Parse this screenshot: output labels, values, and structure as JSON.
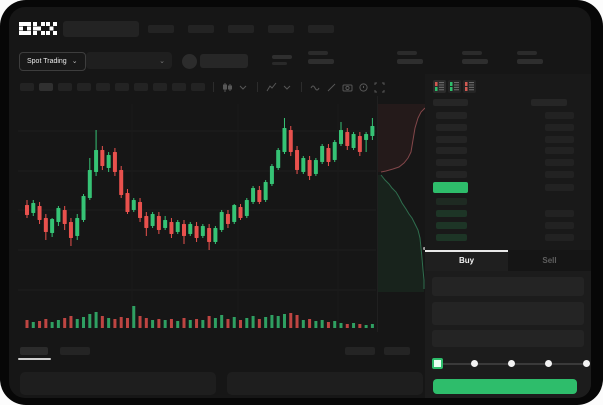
{
  "brand": {
    "logo_text": "OKX"
  },
  "header": {
    "nav_placeholder_count": 5
  },
  "subheader": {
    "market_selector_label": "Spot Trading",
    "chevron": "⌄",
    "stat_block_count": 4
  },
  "chart_toolbar": {
    "timeframe_slot_count": 10,
    "icons": [
      "candle-style-icon",
      "chevron-down-icon",
      "indicators-icon",
      "chevron-down-icon",
      "line-style-icon",
      "draw-icon",
      "camera-icon",
      "alert-icon",
      "fullscreen-icon"
    ]
  },
  "order_book": {
    "view_modes": [
      {
        "name": "combined-book-view",
        "top": "#d05a52",
        "bottom": "#2ebd6b"
      },
      {
        "name": "bids-book-view",
        "top": "#2ebd6b",
        "bottom": "#2ebd6b"
      },
      {
        "name": "asks-book-view",
        "top": "#d05a52",
        "bottom": "#d05a52"
      }
    ],
    "ask_row_count": 6,
    "bid_row_count": 4
  },
  "trade_panel": {
    "tabs": [
      {
        "label": "Buy",
        "active": true
      },
      {
        "label": "Sell",
        "active": false
      }
    ],
    "input_slot_count": 3,
    "slider": {
      "positions": [
        0,
        25,
        50,
        75,
        100
      ],
      "value": 0
    }
  },
  "bottom_tabs": {
    "left_slot_count": 2,
    "right_slot_count": 2,
    "active_index": 0
  },
  "colors": {
    "accent_green": "#2ebd6b",
    "up": "#36c375",
    "down": "#e8514d",
    "app_bg": "#161616",
    "panel_bg": "#191919",
    "placeholder": "#242424"
  },
  "chart_data": {
    "type": "candlestick",
    "title": "",
    "xlabel": "",
    "ylabel": "",
    "note": "no axis labels visible in screenshot; OHLC values are relative units estimated from pixels",
    "ylim": [
      0,
      200
    ],
    "grid": {
      "h": [
        35,
        75,
        114,
        154,
        194
      ],
      "v": [
        114,
        220,
        320
      ]
    },
    "candles": [
      [
        87,
        92,
        74,
        77
      ],
      [
        79,
        92,
        76,
        89
      ],
      [
        86,
        90,
        68,
        72
      ],
      [
        74,
        78,
        52,
        60
      ],
      [
        59,
        74,
        55,
        73
      ],
      [
        70,
        86,
        66,
        84
      ],
      [
        82,
        86,
        62,
        68
      ],
      [
        70,
        74,
        46,
        54
      ],
      [
        56,
        78,
        52,
        74
      ],
      [
        72,
        98,
        70,
        96
      ],
      [
        94,
        134,
        92,
        122
      ],
      [
        120,
        162,
        116,
        142
      ],
      [
        142,
        146,
        122,
        126
      ],
      [
        124,
        140,
        120,
        137
      ],
      [
        140,
        144,
        116,
        120
      ],
      [
        122,
        126,
        94,
        97
      ],
      [
        99,
        103,
        78,
        80
      ],
      [
        82,
        94,
        80,
        92
      ],
      [
        90,
        94,
        70,
        74
      ],
      [
        76,
        80,
        56,
        64
      ],
      [
        66,
        80,
        64,
        78
      ],
      [
        76,
        80,
        58,
        62
      ],
      [
        64,
        76,
        62,
        72
      ],
      [
        70,
        74,
        54,
        58
      ],
      [
        60,
        72,
        58,
        70
      ],
      [
        68,
        72,
        48,
        56
      ],
      [
        58,
        70,
        56,
        68
      ],
      [
        66,
        70,
        50,
        54
      ],
      [
        56,
        68,
        54,
        66
      ],
      [
        64,
        68,
        42,
        50
      ],
      [
        50,
        66,
        48,
        64
      ],
      [
        62,
        82,
        60,
        80
      ],
      [
        78,
        82,
        64,
        68
      ],
      [
        70,
        88,
        68,
        87
      ],
      [
        85,
        88,
        72,
        74
      ],
      [
        76,
        94,
        74,
        92
      ],
      [
        90,
        106,
        88,
        104
      ],
      [
        102,
        106,
        88,
        90
      ],
      [
        92,
        112,
        90,
        110
      ],
      [
        108,
        128,
        106,
        126
      ],
      [
        124,
        144,
        122,
        142
      ],
      [
        140,
        174,
        138,
        164
      ],
      [
        162,
        166,
        136,
        140
      ],
      [
        142,
        146,
        118,
        122
      ],
      [
        120,
        136,
        118,
        134
      ],
      [
        132,
        136,
        112,
        116
      ],
      [
        118,
        134,
        116,
        132
      ],
      [
        130,
        148,
        128,
        146
      ],
      [
        144,
        148,
        126,
        130
      ],
      [
        132,
        152,
        130,
        150
      ],
      [
        148,
        170,
        146,
        162
      ],
      [
        160,
        164,
        142,
        146
      ],
      [
        144,
        160,
        142,
        158
      ],
      [
        156,
        160,
        136,
        140
      ],
      [
        152,
        160,
        140,
        158
      ],
      [
        156,
        174,
        152,
        166
      ]
    ],
    "volume": [
      8,
      6,
      7,
      9,
      6,
      8,
      10,
      12,
      9,
      11,
      14,
      16,
      12,
      10,
      9,
      11,
      10,
      22,
      12,
      10,
      8,
      9,
      8,
      9,
      7,
      10,
      8,
      9,
      8,
      12,
      10,
      13,
      9,
      11,
      8,
      10,
      12,
      9,
      11,
      13,
      12,
      14,
      15,
      13,
      8,
      9,
      7,
      8,
      6,
      7,
      5,
      4,
      5,
      4,
      3,
      4
    ],
    "depth": {
      "asks": [
        [
          407,
          12
        ],
        [
          403,
          16
        ],
        [
          400,
          22
        ],
        [
          397,
          32
        ],
        [
          395,
          44
        ],
        [
          393,
          56
        ],
        [
          390,
          62
        ],
        [
          386,
          67
        ],
        [
          381,
          71
        ],
        [
          375,
          73
        ],
        [
          368,
          75
        ],
        [
          363,
          76
        ]
      ],
      "bids": [
        [
          363,
          79
        ],
        [
          367,
          84
        ],
        [
          371,
          88
        ],
        [
          374,
          92
        ],
        [
          378,
          96
        ],
        [
          381,
          101
        ],
        [
          384,
          107
        ],
        [
          388,
          113
        ],
        [
          391,
          118
        ],
        [
          394,
          122
        ],
        [
          397,
          128
        ],
        [
          400,
          134
        ],
        [
          402,
          142
        ],
        [
          403,
          152
        ],
        [
          404,
          162
        ],
        [
          405,
          174
        ],
        [
          406,
          184
        ],
        [
          406,
          193
        ]
      ]
    }
  }
}
